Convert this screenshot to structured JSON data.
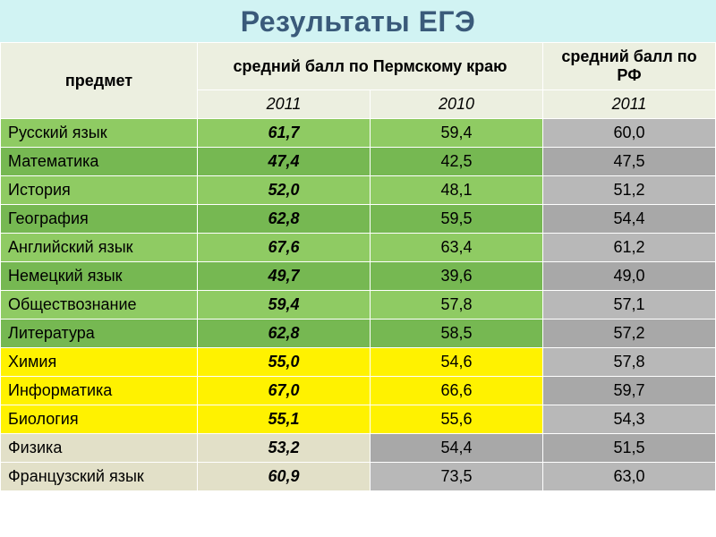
{
  "title": "Результаты ЕГЭ",
  "colors": {
    "title_bg": "#d1f3f3",
    "title_text": "#3a5a7a",
    "header_bg": "#ecefe0",
    "green_light": "#8fcb63",
    "green_dark": "#76b852",
    "yellow": "#fff200",
    "beige": "#e2e0c8",
    "grey_light": "#b8b8b8",
    "grey_mid": "#a8a8a8",
    "border": "#ffffff",
    "text": "#000000"
  },
  "header": {
    "subject": "предмет",
    "perm": "средний балл по Пермскому краю",
    "rf": "средний балл по РФ",
    "y2011": "2011",
    "y2010": "2010",
    "y2011b": "2011"
  },
  "rows": [
    {
      "subject": "Русский язык",
      "c1": "61,7",
      "c2": "59,4",
      "c3": "60,0",
      "group": "green",
      "alt": "light"
    },
    {
      "subject": "Математика",
      "c1": "47,4",
      "c2": "42,5",
      "c3": "47,5",
      "group": "green",
      "alt": "dark"
    },
    {
      "subject": "История",
      "c1": "52,0",
      "c2": "48,1",
      "c3": "51,2",
      "group": "green",
      "alt": "light"
    },
    {
      "subject": "География",
      "c1": "62,8",
      "c2": "59,5",
      "c3": "54,4",
      "group": "green",
      "alt": "dark"
    },
    {
      "subject": "Английский язык",
      "c1": "67,6",
      "c2": "63,4",
      "c3": "61,2",
      "group": "green",
      "alt": "light"
    },
    {
      "subject": "Немецкий язык",
      "c1": "49,7",
      "c2": "39,6",
      "c3": "49,0",
      "group": "green",
      "alt": "dark"
    },
    {
      "subject": "Обществознание",
      "c1": "59,4",
      "c2": "57,8",
      "c3": "57,1",
      "group": "green",
      "alt": "light"
    },
    {
      "subject": "Литература",
      "c1": "62,8",
      "c2": "58,5",
      "c3": "57,2",
      "group": "green",
      "alt": "dark"
    },
    {
      "subject": "Химия",
      "c1": "55,0",
      "c2": "54,6",
      "c3": "57,8",
      "group": "yellow",
      "alt": "light"
    },
    {
      "subject": "Информатика",
      "c1": "67,0",
      "c2": "66,6",
      "c3": "59,7",
      "group": "yellow",
      "alt": "dark"
    },
    {
      "subject": "Биология",
      "c1": "55,1",
      "c2": "55,6",
      "c3": "54,3",
      "group": "yellow",
      "alt": "light"
    },
    {
      "subject": "Физика",
      "c1": "53,2",
      "c2": "54,4",
      "c3": "51,5",
      "group": "beige",
      "alt": "dark"
    },
    {
      "subject": "Французский язык",
      "c1": "60,9",
      "c2": "73,5",
      "c3": "63,0",
      "group": "beige",
      "alt": "light"
    }
  ]
}
